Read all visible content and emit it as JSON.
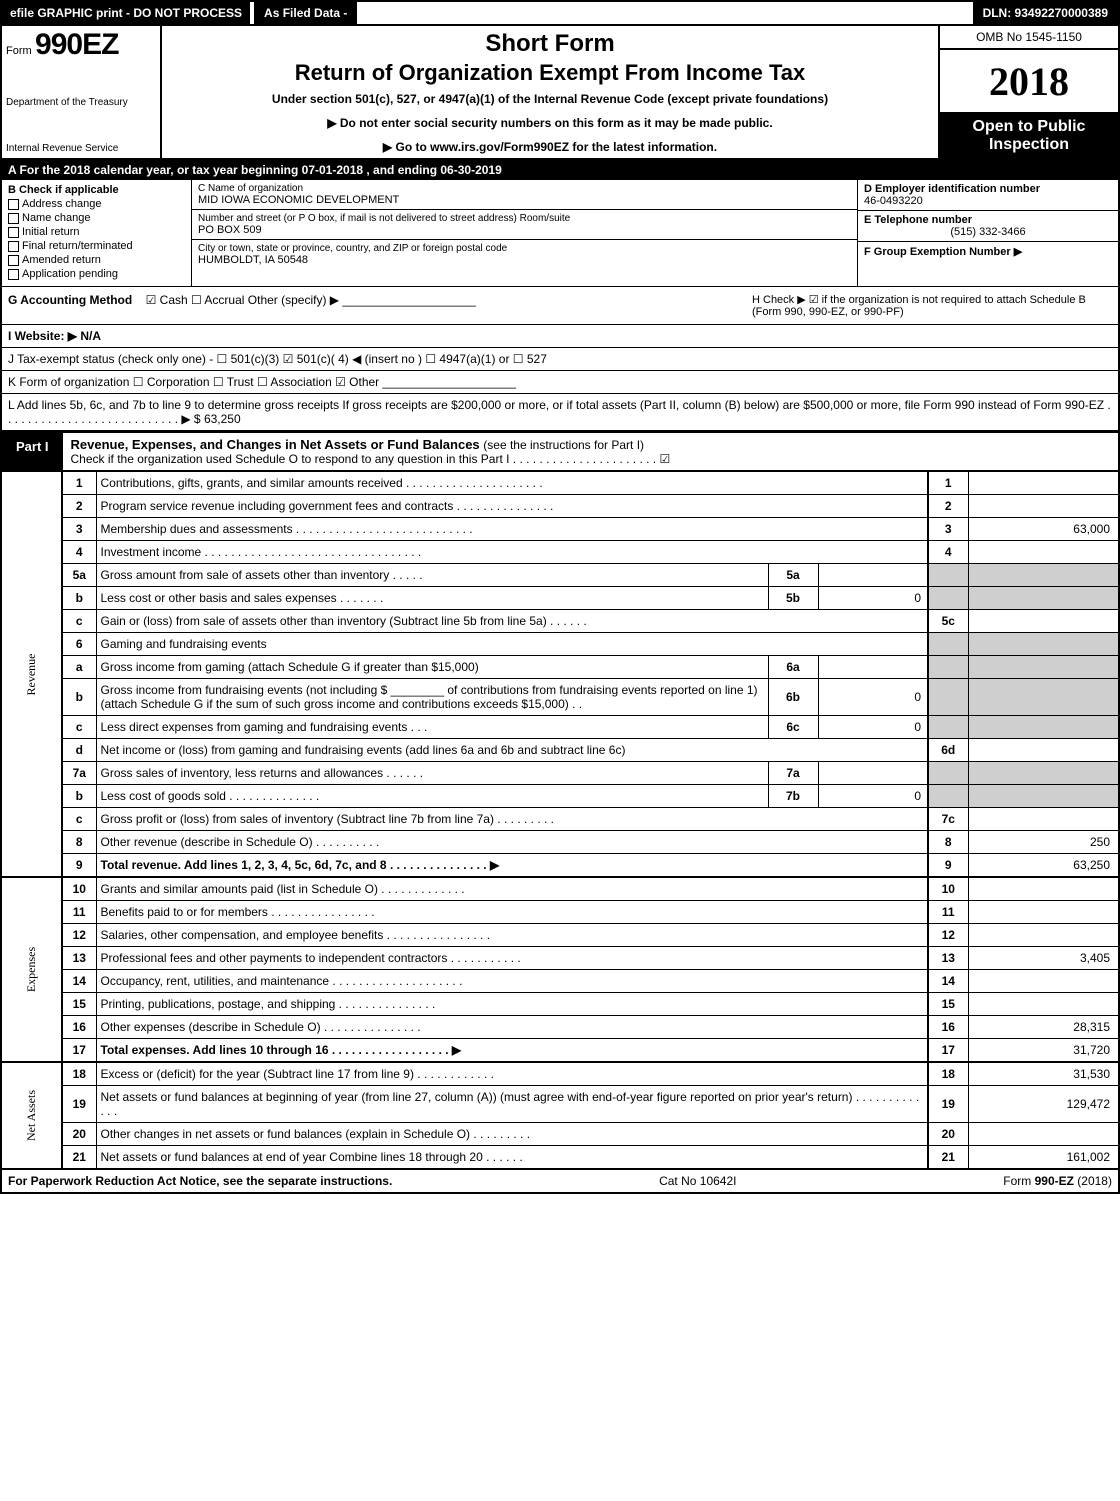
{
  "topbar": {
    "efile": "efile GRAPHIC print - DO NOT PROCESS",
    "asfiled": "As Filed Data -",
    "dln": "DLN: 93492270000389"
  },
  "header": {
    "form_prefix": "Form",
    "form_no": "990EZ",
    "short_form": "Short Form",
    "main_title": "Return of Organization Exempt From Income Tax",
    "subtitle": "Under section 501(c), 527, or 4947(a)(1) of the Internal Revenue Code (except private foundations)",
    "arrow1": "▶ Do not enter social security numbers on this form as it may be made public.",
    "arrow2": "▶ Go to www.irs.gov/Form990EZ for the latest information.",
    "dept": "Department of the Treasury",
    "irs": "Internal Revenue Service",
    "omb": "OMB No 1545-1150",
    "year": "2018",
    "open": "Open to Public Inspection"
  },
  "row_a": "A  For the 2018 calendar year, or tax year beginning 07-01-2018           , and ending 06-30-2019",
  "section_b": {
    "label": "B  Check if applicable",
    "items": [
      "Address change",
      "Name change",
      "Initial return",
      "Final return/terminated",
      "Amended return",
      "Application pending"
    ]
  },
  "section_c": {
    "name_label": "C Name of organization",
    "name": "MID IOWA ECONOMIC DEVELOPMENT",
    "street_label": "Number and street (or P O box, if mail is not delivered to street address)  Room/suite",
    "street": "PO BOX 509",
    "city_label": "City or town, state or province, country, and ZIP or foreign postal code",
    "city": "HUMBOLDT, IA  50548"
  },
  "section_d": {
    "d_label": "D Employer identification number",
    "ein": "46-0493220",
    "e_label": "E Telephone number",
    "phone": "(515) 332-3466",
    "f_label": "F Group Exemption Number   ▶"
  },
  "g": {
    "label": "G Accounting Method",
    "opts": "☑ Cash   ☐ Accrual   Other (specify) ▶ ____________________"
  },
  "h": "H   Check ▶  ☑ if the organization is not required to attach Schedule B (Form 990, 990-EZ, or 990-PF)",
  "i": "I Website: ▶ N/A",
  "j": "J Tax-exempt status (check only one) - ☐ 501(c)(3)  ☑ 501(c)( 4) ◀ (insert no )  ☐ 4947(a)(1) or  ☐ 527",
  "k": "K Form of organization    ☐ Corporation   ☐ Trust   ☐ Association   ☑ Other  ____________________",
  "l": "L Add lines 5b, 6c, and 7b to line 9 to determine gross receipts  If gross receipts are $200,000 or more, or if total assets (Part II, column (B) below) are $500,000 or more, file Form 990 instead of Form 990-EZ  . . . . . . . . . . . . . . . . . . . . . . . . . . . ▶ $ 63,250",
  "part1": {
    "tab": "Part I",
    "title": "Revenue, Expenses, and Changes in Net Assets or Fund Balances",
    "title_note": " (see the instructions for Part I)",
    "check_line": "Check if the organization used Schedule O to respond to any question in this Part I . . . . . . . . . . . . . . . . . . . . . .  ☑"
  },
  "side_labels": {
    "rev": "Revenue",
    "exp": "Expenses",
    "net": "Net Assets"
  },
  "lines": [
    {
      "n": "1",
      "desc": "Contributions, gifts, grants, and similar amounts received . . . . . . . . . . . . . . . . . . . . .",
      "ln": "1",
      "amt": ""
    },
    {
      "n": "2",
      "desc": "Program service revenue including government fees and contracts . . . . . . . . . . . . . . .",
      "ln": "2",
      "amt": ""
    },
    {
      "n": "3",
      "desc": "Membership dues and assessments . . . . . . . . . . . . . . . . . . . . . . . . . . .",
      "ln": "3",
      "amt": "63,000"
    },
    {
      "n": "4",
      "desc": "Investment income . . . . . . . . . . . . . . . . . . . . . . . . . . . . . . . . .",
      "ln": "4",
      "amt": ""
    },
    {
      "n": "5a",
      "desc": "Gross amount from sale of assets other than inventory . . . . .",
      "sub": "5a",
      "subval": "",
      "ln": "",
      "amt": "",
      "grey": true
    },
    {
      "n": "b",
      "desc": "Less  cost or other basis and sales expenses . . . . . . .",
      "sub": "5b",
      "subval": "0",
      "ln": "",
      "amt": "",
      "grey": true,
      "subval_right": "0"
    },
    {
      "n": "c",
      "desc": "Gain or (loss) from sale of assets other than inventory (Subtract line 5b from line 5a) . . . . . .",
      "ln": "5c",
      "amt": ""
    },
    {
      "n": "6",
      "desc": "Gaming and fundraising events",
      "ln": "",
      "amt": "",
      "grey": true,
      "noamt": true
    },
    {
      "n": "a",
      "desc": "Gross income from gaming (attach Schedule G if greater than $15,000)",
      "sub": "6a",
      "subval": "",
      "ln": "",
      "amt": "",
      "grey": true
    },
    {
      "n": "b",
      "desc": "Gross income from fundraising events (not including $ ________ of contributions from fundraising events reported on line 1) (attach Schedule G if the sum of such gross income and contributions exceeds $15,000)   .  .",
      "sub": "6b",
      "subval": "0",
      "ln": "",
      "amt": "",
      "grey": true
    },
    {
      "n": "c",
      "desc": "Less  direct expenses from gaming and fundraising events    .   .   .",
      "sub": "6c",
      "subval": "0",
      "ln": "",
      "amt": "",
      "grey": true
    },
    {
      "n": "d",
      "desc": "Net income or (loss) from gaming and fundraising events (add lines 6a and 6b and subtract line 6c)",
      "ln": "6d",
      "amt": ""
    },
    {
      "n": "7a",
      "desc": "Gross sales of inventory, less returns and allowances . . . . . .",
      "sub": "7a",
      "subval": "",
      "ln": "",
      "amt": "",
      "grey": true
    },
    {
      "n": "b",
      "desc": "Less  cost of goods sold           . . . . . . . . . . . . . .",
      "sub": "7b",
      "subval": "0",
      "ln": "",
      "amt": "",
      "grey": true
    },
    {
      "n": "c",
      "desc": "Gross profit or (loss) from sales of inventory (Subtract line 7b from line 7a) . . . . . . . . .",
      "ln": "7c",
      "amt": ""
    },
    {
      "n": "8",
      "desc": "Other revenue (describe in Schedule O)                     . . . . . . . . . .",
      "ln": "8",
      "amt": "250"
    },
    {
      "n": "9",
      "desc": "Total revenue. Add lines 1, 2, 3, 4, 5c, 6d, 7c, and 8 . . . . . . . . . . . . . . .  ▶",
      "ln": "9",
      "amt": "63,250",
      "bold": true
    }
  ],
  "exp_lines": [
    {
      "n": "10",
      "desc": "Grants and similar amounts paid (list in Schedule O)        . . . . . . . . . . . . .",
      "ln": "10",
      "amt": ""
    },
    {
      "n": "11",
      "desc": "Benefits paid to or for members              . . . . . . . . . . . . . . . .",
      "ln": "11",
      "amt": ""
    },
    {
      "n": "12",
      "desc": "Salaries, other compensation, and employee benefits . . . . . . . . . . . . . . . .",
      "ln": "12",
      "amt": ""
    },
    {
      "n": "13",
      "desc": "Professional fees and other payments to independent contractors  . . . . . . . . . . .",
      "ln": "13",
      "amt": "3,405"
    },
    {
      "n": "14",
      "desc": "Occupancy, rent, utilities, and maintenance . . . . . . . . . . . . . . . . . . . .",
      "ln": "14",
      "amt": ""
    },
    {
      "n": "15",
      "desc": "Printing, publications, postage, and shipping         . . . . . . . . . . . . . . .",
      "ln": "15",
      "amt": ""
    },
    {
      "n": "16",
      "desc": "Other expenses (describe in Schedule O)            . . . . . . . . . . . . . . .",
      "ln": "16",
      "amt": "28,315"
    },
    {
      "n": "17",
      "desc": "Total expenses. Add lines 10 through 16     . . . . . . . . . . . . . . . . . .  ▶",
      "ln": "17",
      "amt": "31,720",
      "bold": true
    }
  ],
  "net_lines": [
    {
      "n": "18",
      "desc": "Excess or (deficit) for the year (Subtract line 17 from line 9)     . . . . . . . . . . . .",
      "ln": "18",
      "amt": "31,530"
    },
    {
      "n": "19",
      "desc": "Net assets or fund balances at beginning of year (from line 27, column (A)) (must agree with end-of-year figure reported on prior year's return)          . . . . . . . . . . . . .",
      "ln": "19",
      "amt": "129,472"
    },
    {
      "n": "20",
      "desc": "Other changes in net assets or fund balances (explain in Schedule O)    . . . . . . . . .",
      "ln": "20",
      "amt": ""
    },
    {
      "n": "21",
      "desc": "Net assets or fund balances at end of year  Combine lines 18 through 20        . . . . . .",
      "ln": "21",
      "amt": "161,002"
    }
  ],
  "footer": {
    "left": "For Paperwork Reduction Act Notice, see the separate instructions.",
    "mid": "Cat No  10642I",
    "right": "Form 990-EZ (2018)"
  },
  "colors": {
    "black": "#000000",
    "white": "#ffffff",
    "grey": "#cfcfcf"
  }
}
